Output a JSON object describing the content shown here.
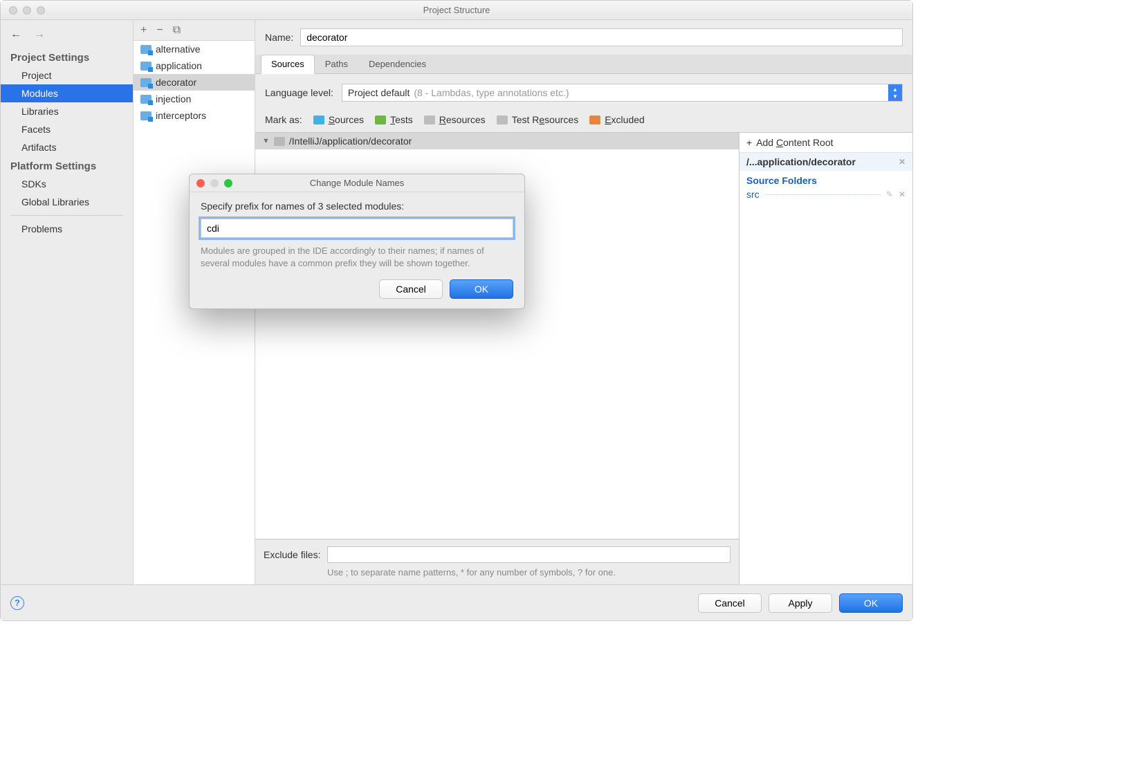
{
  "window": {
    "title": "Project Structure"
  },
  "sidebar": {
    "sections": [
      {
        "title": "Project Settings",
        "items": [
          "Project",
          "Modules",
          "Libraries",
          "Facets",
          "Artifacts"
        ],
        "selectedIndex": 1
      },
      {
        "title": "Platform Settings",
        "items": [
          "SDKs",
          "Global Libraries"
        ]
      }
    ],
    "bottomItem": "Problems"
  },
  "modules": {
    "items": [
      "alternative",
      "application",
      "decorator",
      "injection",
      "interceptors"
    ],
    "selectedIndex": 2
  },
  "detail": {
    "nameLabel": "Name:",
    "nameValue": "decorator",
    "tabs": [
      "Sources",
      "Paths",
      "Dependencies"
    ],
    "activeTab": 0,
    "langLabel": "Language level:",
    "langValue": "Project default",
    "langHint": "(8 - Lambdas, type annotations etc.)",
    "markLabel": "Mark as:",
    "markItems": [
      {
        "label": "Sources",
        "underline": "S",
        "rest": "ources",
        "color": "#43b1e6"
      },
      {
        "label": "Tests",
        "underline": "T",
        "rest": "ests",
        "color": "#6fb83f"
      },
      {
        "label": "Resources",
        "underline": "R",
        "rest": "esources",
        "color": "#bdbdbd"
      },
      {
        "label": "Test Resources",
        "prefix": "Test R",
        "underline": "e",
        "rest": "sources",
        "color": "#bdbdbd"
      },
      {
        "label": "Excluded",
        "underline": "E",
        "rest": "xcluded",
        "color": "#e88442"
      }
    ],
    "rootPath": "/IntelliJ/application/decorator",
    "excludeLabel": "Exclude files:",
    "excludeHint": "Use ; to separate name patterns, * for any number of symbols, ? for one."
  },
  "rightPanel": {
    "addLabel": "Add Content Root",
    "addUnderline": "C",
    "rootShort": "/...application/decorator",
    "sourceFoldersTitle": "Source Folders",
    "srcLabel": "src"
  },
  "footer": {
    "cancel": "Cancel",
    "apply": "Apply",
    "ok": "OK"
  },
  "modal": {
    "title": "Change Module Names",
    "prompt": "Specify prefix for names of 3 selected modules:",
    "value": "cdi",
    "hint": "Modules are grouped in the IDE accordingly to their names; if names of several modules have a common prefix they will be shown together.",
    "cancel": "Cancel",
    "ok": "OK"
  },
  "colors": {
    "accent": "#2a72e8",
    "folderBlue": "#69aee6"
  }
}
